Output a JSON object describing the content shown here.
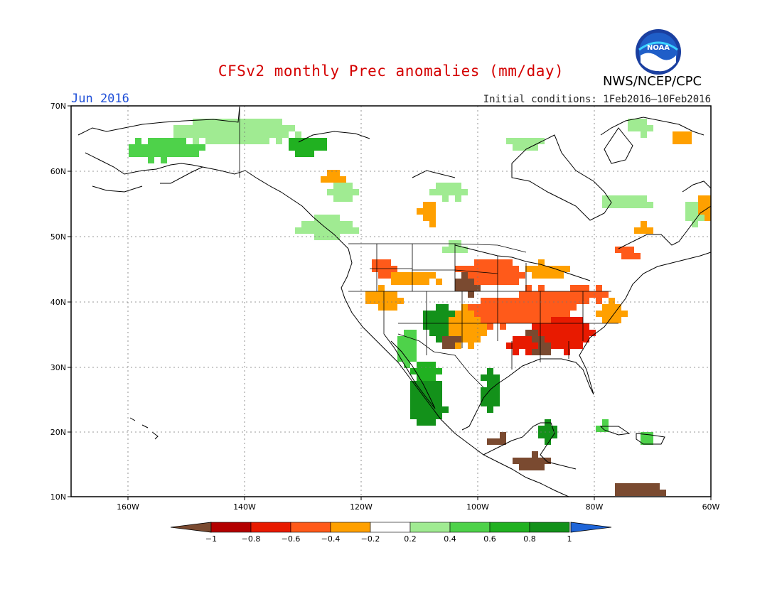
{
  "title": "CFSv2 monthly Prec anomalies (mm/day)",
  "agency": "NWS/NCEP/CPC",
  "logo_text": "NOAA",
  "month": "Jun 2016",
  "initial_conditions": "Initial conditions: 1Feb2016–10Feb2016",
  "lat_labels": [
    "70N",
    "60N",
    "50N",
    "40N",
    "30N",
    "20N",
    "10N"
  ],
  "lon_labels": [
    "160W",
    "140W",
    "120W",
    "100W",
    "80W",
    "60W"
  ],
  "colorbar": {
    "labels": [
      "−1",
      "−0.8",
      "−0.6",
      "−0.4",
      "−0.2",
      "0.2",
      "0.4",
      "0.6",
      "0.8",
      "1"
    ],
    "colors": [
      "#7a4a30",
      "#b30000",
      "#e81a00",
      "#ff5a1a",
      "#ffa000",
      "#ffffff",
      "#a0eb92",
      "#4ed24a",
      "#21b121",
      "#13911a",
      "#1f65d8"
    ]
  }
}
